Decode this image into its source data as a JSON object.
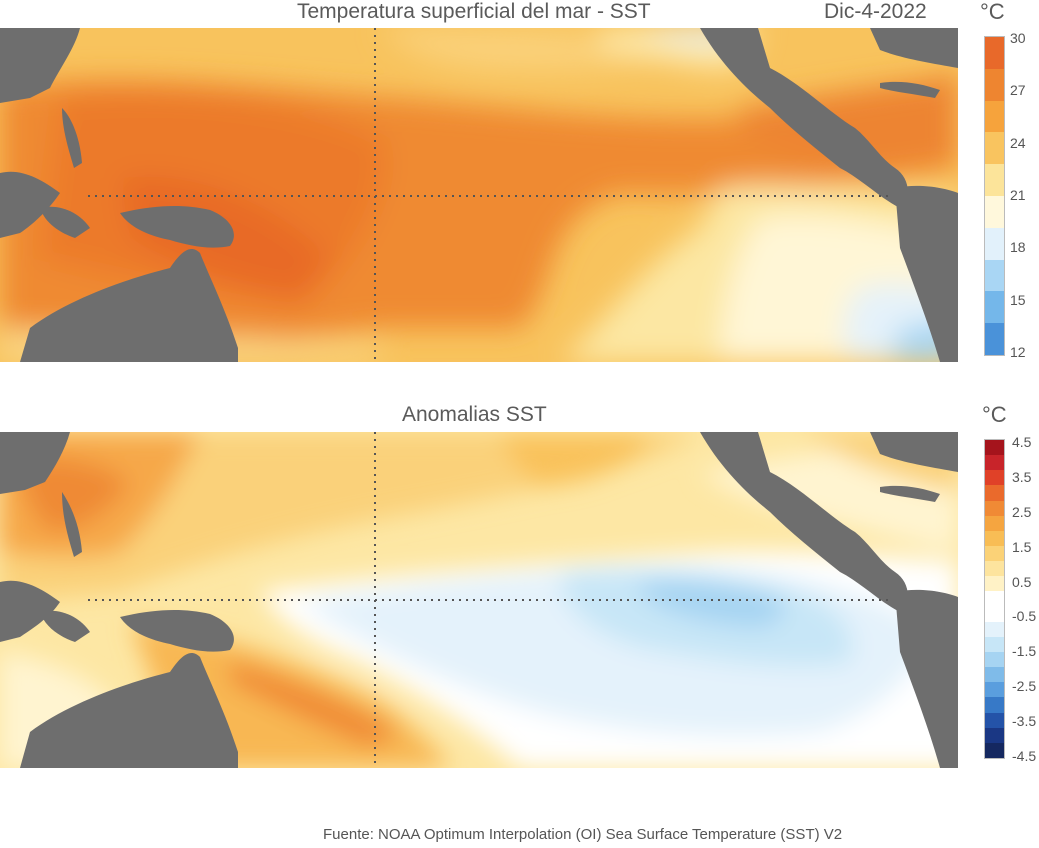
{
  "top_map": {
    "title": "Temperatura superficial del mar - SST",
    "date": "Dic-4-2022",
    "unit": "°C",
    "colorbar": {
      "ticks": [
        "30",
        "27",
        "24",
        "21",
        "18",
        "15",
        "12"
      ],
      "colors": [
        "#e8692a",
        "#ee8530",
        "#f6a33c",
        "#f9c45f",
        "#fce49a",
        "#fff8dc",
        "#e2f1fb",
        "#a9d6f4",
        "#74b7ea",
        "#4a92d9"
      ]
    }
  },
  "bottom_map": {
    "title": "Anomalias SST",
    "unit": "°C",
    "colorbar": {
      "ticks": [
        "4.5",
        "3.5",
        "2.5",
        "1.5",
        "0.5",
        "-0.5",
        "-1.5",
        "-2.5",
        "-3.5",
        "-4.5"
      ],
      "colors": [
        "#a5141c",
        "#c8242a",
        "#e04128",
        "#ea6a2c",
        "#f08a35",
        "#f5a540",
        "#f8bd55",
        "#fbd277",
        "#fde49e",
        "#fff2c6",
        "#ffffff",
        "#ffffff",
        "#e4f2fb",
        "#c7e6f7",
        "#a6d4f2",
        "#7fbbe9",
        "#5a9ede",
        "#3779c7",
        "#2453a8",
        "#1a3784",
        "#152860"
      ]
    }
  },
  "footer": "Fuente: NOAA Optimum Interpolation (OI) Sea Surface Temperature (SST) V2"
}
